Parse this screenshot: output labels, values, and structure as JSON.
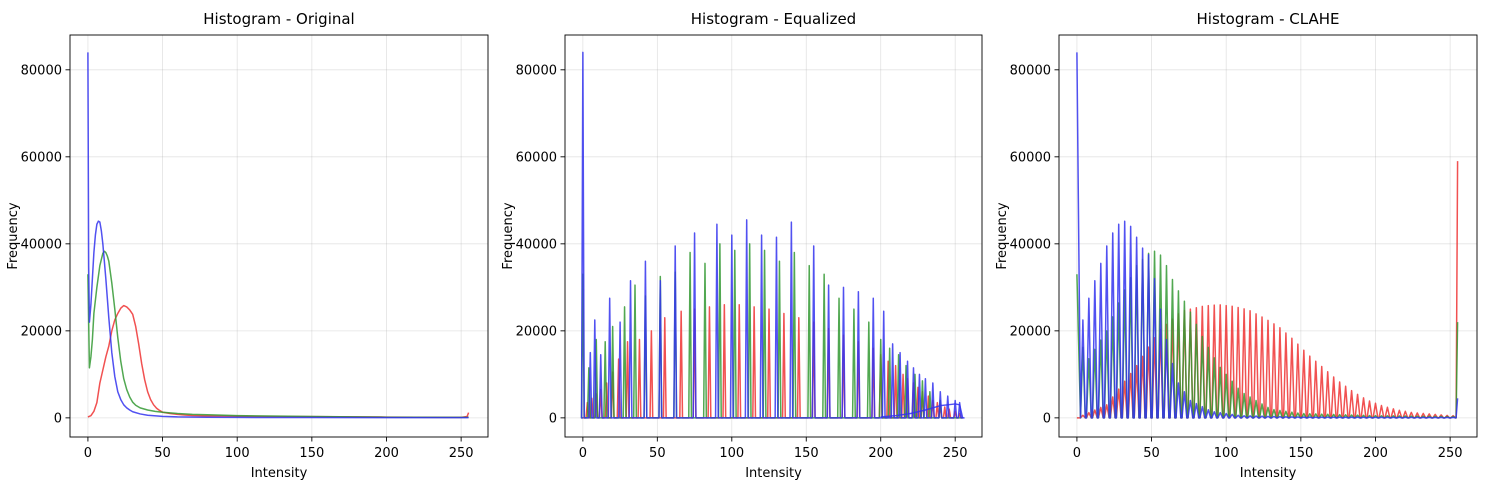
{
  "chart_data": [
    {
      "type": "line",
      "title": "Histogram - Original",
      "xlabel": "Intensity",
      "ylabel": "Frequency",
      "xlim": [
        -12,
        268
      ],
      "ylim": [
        -4400,
        88000
      ],
      "xticks": [
        0,
        50,
        100,
        150,
        200,
        250
      ],
      "yticks": [
        0,
        20000,
        40000,
        60000,
        80000
      ],
      "grid": true,
      "colors": {
        "red": "#ee3333",
        "green": "#339933",
        "blue": "#3333ee"
      },
      "series": [
        {
          "channel": "red",
          "x": [
            0,
            2,
            4,
            6,
            8,
            10,
            12,
            14,
            16,
            18,
            20,
            22,
            24,
            26,
            28,
            30,
            32,
            34,
            36,
            38,
            40,
            42,
            44,
            46,
            48,
            50,
            55,
            60,
            65,
            70,
            80,
            100,
            120,
            150,
            180,
            200,
            220,
            240,
            250,
            254,
            255
          ],
          "values": [
            200,
            500,
            1500,
            3500,
            8000,
            11000,
            14000,
            16500,
            20000,
            22500,
            24000,
            25200,
            25800,
            25500,
            24800,
            23800,
            21000,
            17000,
            12500,
            8800,
            6000,
            4200,
            3000,
            2200,
            1700,
            1300,
            1000,
            800,
            650,
            550,
            450,
            380,
            320,
            270,
            220,
            180,
            150,
            100,
            100,
            300,
            1200
          ]
        },
        {
          "channel": "green",
          "x": [
            0,
            1,
            2,
            3,
            4,
            6,
            8,
            10,
            11,
            12,
            13,
            14,
            16,
            18,
            20,
            22,
            24,
            26,
            28,
            30,
            32,
            35,
            40,
            45,
            50,
            60,
            70,
            80,
            100,
            150,
            200,
            254,
            255
          ],
          "values": [
            33000,
            11500,
            14000,
            18000,
            24000,
            30000,
            35000,
            37800,
            38300,
            38000,
            37200,
            36000,
            31000,
            25000,
            18500,
            13000,
            9000,
            6500,
            4800,
            3600,
            2900,
            2300,
            1800,
            1500,
            1300,
            1000,
            800,
            700,
            500,
            300,
            150,
            100,
            200
          ]
        },
        {
          "channel": "blue",
          "x": [
            0,
            0.5,
            1,
            2,
            3,
            4,
            5,
            6,
            7,
            8,
            9,
            10,
            11,
            12,
            13,
            14,
            16,
            18,
            20,
            22,
            24,
            26,
            28,
            30,
            35,
            40,
            50,
            60,
            80,
            100,
            150,
            200,
            255
          ],
          "values": [
            84000,
            35000,
            22000,
            26000,
            32000,
            38000,
            42000,
            44500,
            45200,
            45000,
            43000,
            40000,
            36000,
            32000,
            27500,
            23000,
            15000,
            9500,
            6000,
            4200,
            3000,
            2300,
            1800,
            1400,
            900,
            600,
            350,
            220,
            150,
            100,
            80,
            60,
            50
          ]
        }
      ]
    },
    {
      "type": "line",
      "title": "Histogram - Equalized",
      "xlabel": "Intensity",
      "ylabel": "Frequency",
      "xlim": [
        -12,
        268
      ],
      "ylim": [
        -4400,
        88000
      ],
      "xticks": [
        0,
        50,
        100,
        150,
        200,
        250
      ],
      "yticks": [
        0,
        20000,
        40000,
        60000,
        80000
      ],
      "grid": true,
      "spike_width": 0.9,
      "series": [
        {
          "channel": "red",
          "x": [
            3,
            6,
            9,
            12,
            16,
            20,
            24,
            30,
            38,
            46,
            55,
            66,
            75,
            85,
            95,
            105,
            115,
            125,
            135,
            145,
            155,
            165,
            175,
            185,
            195,
            200,
            205,
            210,
            215,
            218,
            222,
            225,
            228,
            232,
            235,
            238,
            240,
            243,
            246,
            250,
            253
          ],
          "values": [
            3500,
            4500,
            5500,
            6500,
            8000,
            10500,
            13500,
            17500,
            18000,
            20000,
            23000,
            24500,
            25000,
            25500,
            26000,
            26000,
            25500,
            25000,
            24000,
            23000,
            22000,
            20500,
            19000,
            17500,
            16000,
            14500,
            13000,
            12000,
            10000,
            9000,
            8000,
            7000,
            6000,
            5000,
            4000,
            3500,
            3000,
            2500,
            2000,
            1500,
            1000
          ]
        },
        {
          "channel": "green",
          "x": [
            0,
            4,
            9,
            15,
            20,
            28,
            35,
            42,
            52,
            62,
            72,
            82,
            92,
            102,
            112,
            122,
            132,
            142,
            152,
            162,
            172,
            182,
            192,
            200,
            206,
            212,
            217,
            223,
            228,
            233,
            240
          ],
          "values": [
            33000,
            11500,
            18000,
            17500,
            21000,
            25500,
            30500,
            28000,
            32500,
            33500,
            38000,
            35500,
            40000,
            38500,
            40000,
            38500,
            36000,
            38000,
            35000,
            33000,
            27500,
            25000,
            22000,
            18000,
            16000,
            14500,
            12000,
            10000,
            8500,
            6000,
            4000
          ]
        },
        {
          "channel": "blue",
          "x": [
            0,
            5,
            8,
            12,
            18,
            25,
            32,
            42,
            52,
            62,
            75,
            90,
            100,
            110,
            120,
            130,
            140,
            155,
            165,
            175,
            185,
            195,
            202,
            208,
            213,
            218,
            222,
            226,
            230,
            235,
            240,
            245,
            250,
            253,
            255
          ],
          "values": [
            84000,
            15000,
            22500,
            14500,
            27500,
            22000,
            31500,
            36000,
            31500,
            39500,
            42500,
            44500,
            42000,
            45500,
            42000,
            41500,
            45000,
            39500,
            30500,
            30000,
            29000,
            27500,
            24500,
            17000,
            15000,
            13000,
            11500,
            10000,
            9000,
            8000,
            6000,
            5000,
            4000,
            3500,
            0
          ]
        },
        {
          "channel": "blue",
          "style": "baseline",
          "x": [
            200,
            210,
            220,
            230,
            240,
            245,
            250,
            253,
            255
          ],
          "values": [
            200,
            500,
            1000,
            1800,
            2800,
            3000,
            3200,
            3000,
            0
          ]
        }
      ]
    },
    {
      "type": "line",
      "title": "Histogram - CLAHE",
      "xlabel": "Intensity",
      "ylabel": "Frequency",
      "xlim": [
        -12,
        268
      ],
      "ylim": [
        -4400,
        88000
      ],
      "xticks": [
        0,
        50,
        100,
        150,
        200,
        250
      ],
      "yticks": [
        0,
        20000,
        40000,
        60000,
        80000
      ],
      "grid": true,
      "spike_spacing": 4,
      "spike_width": 1.6,
      "series": [
        {
          "channel": "red",
          "end_value": 59000,
          "peak_points": [
            [
              0,
              0
            ],
            [
              20,
              3000
            ],
            [
              40,
              12000
            ],
            [
              55,
              20000
            ],
            [
              70,
              24500
            ],
            [
              85,
              25700
            ],
            [
              95,
              26000
            ],
            [
              105,
              25600
            ],
            [
              115,
              24800
            ],
            [
              125,
              23000
            ],
            [
              135,
              21000
            ],
            [
              145,
              18000
            ],
            [
              155,
              14500
            ],
            [
              165,
              11500
            ],
            [
              175,
              8500
            ],
            [
              185,
              6000
            ],
            [
              195,
              4000
            ],
            [
              205,
              2700
            ],
            [
              215,
              1800
            ],
            [
              225,
              1200
            ],
            [
              240,
              800
            ],
            [
              250,
              500
            ]
          ]
        },
        {
          "channel": "green",
          "end_value": 22000,
          "peak_points": [
            [
              0,
              33000
            ],
            [
              5,
              12000
            ],
            [
              20,
              20000
            ],
            [
              30,
              28000
            ],
            [
              40,
              35000
            ],
            [
              50,
              38500
            ],
            [
              55,
              38000
            ],
            [
              60,
              35000
            ],
            [
              65,
              31000
            ],
            [
              75,
              25000
            ],
            [
              85,
              18000
            ],
            [
              95,
              12000
            ],
            [
              110,
              6000
            ],
            [
              130,
              2000
            ],
            [
              150,
              1000
            ],
            [
              200,
              500
            ],
            [
              250,
              300
            ]
          ]
        },
        {
          "channel": "blue",
          "end_value": 4500,
          "peak_points": [
            [
              0,
              84000
            ],
            [
              4,
              22500
            ],
            [
              8,
              27500
            ],
            [
              12,
              31500
            ],
            [
              16,
              35500
            ],
            [
              20,
              39500
            ],
            [
              24,
              42500
            ],
            [
              28,
              44500
            ],
            [
              32,
              45200
            ],
            [
              36,
              44000
            ],
            [
              40,
              41500
            ],
            [
              44,
              39000
            ],
            [
              48,
              37500
            ],
            [
              52,
              32000
            ],
            [
              56,
              25000
            ],
            [
              60,
              18000
            ],
            [
              64,
              12500
            ],
            [
              68,
              8000
            ],
            [
              76,
              4000
            ],
            [
              90,
              1500
            ],
            [
              110,
              500
            ],
            [
              150,
              200
            ],
            [
              250,
              100
            ]
          ]
        }
      ]
    }
  ]
}
